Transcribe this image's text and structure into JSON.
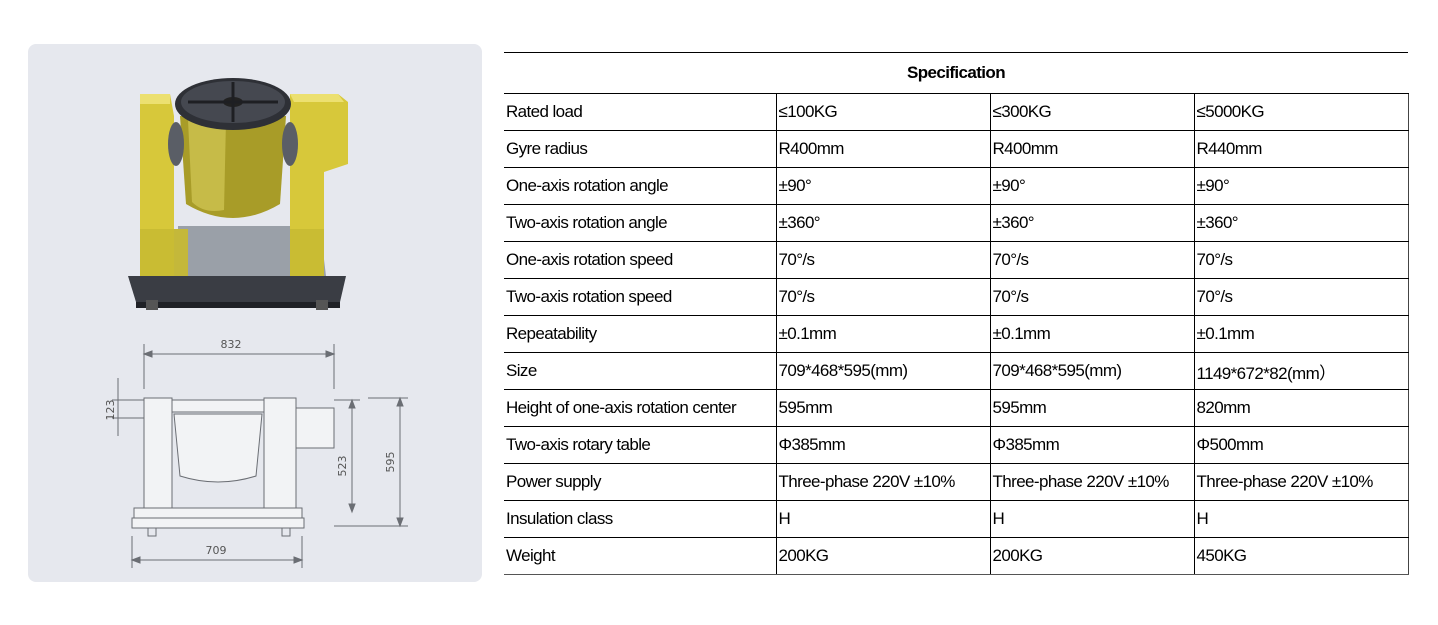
{
  "drawing": {
    "dim_width_top": "832",
    "dim_width_bottom": "709",
    "dim_left_height": "123",
    "dim_inner_height": "523",
    "dim_total_height": "595"
  },
  "table": {
    "title": "Specification",
    "rows": [
      {
        "param": "Rated load",
        "v1": "≤100KG",
        "v2": "≤300KG",
        "v3": "≤5000KG"
      },
      {
        "param": "Gyre radius",
        "v1": "R400mm",
        "v2": "R400mm",
        "v3": "R440mm"
      },
      {
        "param": "One-axis rotation angle",
        "v1": "±90°",
        "v2": "±90°",
        "v3": "±90°"
      },
      {
        "param": "Two-axis rotation angle",
        "v1": "±360°",
        "v2": "±360°",
        "v3": "±360°"
      },
      {
        "param": "One-axis rotation speed",
        "v1": "70°/s",
        "v2": "70°/s",
        "v3": "70°/s"
      },
      {
        "param": "Two-axis rotation speed",
        "v1": "70°/s",
        "v2": "70°/s",
        "v3": "70°/s"
      },
      {
        "param": "Repeatability",
        "v1": "±0.1mm",
        "v2": "±0.1mm",
        "v3": "±0.1mm"
      },
      {
        "param": "Size",
        "v1": "709*468*595(mm)",
        "v2": "709*468*595(mm)",
        "v3": "1149*672*82(mm）"
      },
      {
        "param": "Height of one-axis rotation center",
        "v1": "595mm",
        "v2": "595mm",
        "v3": "820mm"
      },
      {
        "param": "Two-axis rotary table",
        "v1": "Φ385mm",
        "v2": "Φ385mm",
        "v3": "Φ500mm"
      },
      {
        "param": "Power supply",
        "v1": "Three-phase 220V ±10%",
        "v2": "Three-phase 220V ±10%",
        "v3": "Three-phase 220V ±10%"
      },
      {
        "param": "Insulation class",
        "v1": "H",
        "v2": "H",
        "v3": "H"
      },
      {
        "param": "Weight",
        "v1": "200KG",
        "v2": "200KG",
        "v3": "450KG"
      }
    ]
  }
}
